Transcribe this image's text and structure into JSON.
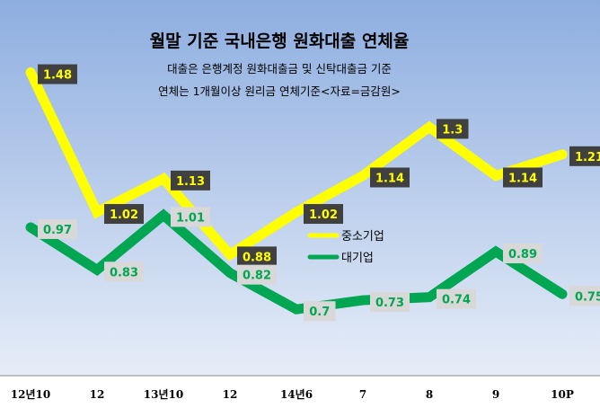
{
  "chart_data": {
    "type": "line",
    "title": "월말 기준 국내은행 원화대출 연체율",
    "subtitle_lines": [
      "대출은 은행계정 원화대출금 및 신탁대출금 기준",
      "연체는 1개월이상 원리금 연체기준<자료=금감원>"
    ],
    "categories": [
      "12년10",
      "12",
      "13년10",
      "12",
      "14년6",
      "7",
      "8",
      "9",
      "10P"
    ],
    "series": [
      {
        "name": "중소기업",
        "color": "#ffff00",
        "label_color": "#ffff00",
        "values": [
          1.48,
          1.02,
          1.13,
          0.88,
          1.02,
          1.14,
          1.3,
          1.14,
          1.21
        ],
        "labels": [
          "1.48",
          "1.02",
          "1.13",
          "0.88",
          "1.02",
          "1.14",
          "1.3",
          "1.14",
          "1.21"
        ]
      },
      {
        "name": "대기업",
        "color": "#00a651",
        "label_color": "#00a651",
        "values": [
          0.97,
          0.83,
          1.01,
          0.82,
          0.7,
          0.73,
          0.74,
          0.89,
          0.75
        ],
        "labels": [
          "0.97",
          "0.83",
          "1.01",
          "0.82",
          "0.7",
          "0.73",
          "0.74",
          "0.89",
          "0.75"
        ]
      }
    ],
    "ylim": [
      0.6,
      1.6
    ],
    "grid": false,
    "legend_position": "center"
  }
}
